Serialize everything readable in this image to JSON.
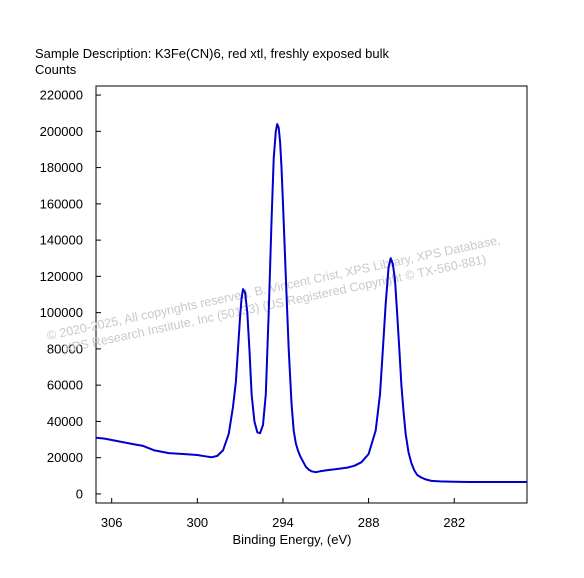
{
  "chart_data": {
    "type": "line",
    "title": "Sample Description:  K3Fe(CN)6, red xtl, freshly exposed bulk",
    "ylabel": "Counts",
    "xlabel": "Binding Energy, (eV)",
    "x_reversed": true,
    "xlim": [
      307.1,
      276.9
    ],
    "ylim": [
      -5000,
      225000
    ],
    "xticks": [
      306,
      300,
      294,
      288,
      282
    ],
    "yticks": [
      0,
      20000,
      40000,
      60000,
      80000,
      100000,
      120000,
      140000,
      160000,
      180000,
      200000,
      220000
    ],
    "line_color": "#0000cc",
    "grid": false,
    "series": [
      {
        "x": [
          307.1,
          306.5,
          305.5,
          304.5,
          303.8,
          303.0,
          302.0,
          301.0,
          300.0,
          299.5,
          299.0,
          298.6,
          298.2,
          297.8,
          297.5,
          297.3,
          297.15,
          297.0,
          296.9,
          296.8,
          296.65,
          296.5,
          296.35,
          296.2,
          296.0,
          295.8,
          295.6,
          295.4,
          295.2,
          295.0,
          294.8,
          294.65,
          294.5,
          294.4,
          294.3,
          294.2,
          294.1,
          294.0,
          293.8,
          293.6,
          293.4,
          293.25,
          293.1,
          292.95,
          292.8,
          292.6,
          292.4,
          292.2,
          292.0,
          291.7,
          291.4,
          291.0,
          290.5,
          290.0,
          289.5,
          289.0,
          288.5,
          288.0,
          287.5,
          287.2,
          287.0,
          286.8,
          286.6,
          286.45,
          286.3,
          286.15,
          286.0,
          285.85,
          285.7,
          285.55,
          285.4,
          285.2,
          285.0,
          284.8,
          284.6,
          284.3,
          284.0,
          283.6,
          283.0,
          282.0,
          281.0,
          280.0,
          279.0,
          278.0,
          276.9
        ],
        "y": [
          31000,
          30500,
          29000,
          27500,
          26500,
          24000,
          22500,
          22000,
          21500,
          20800,
          20200,
          21000,
          24000,
          33000,
          48000,
          62000,
          80000,
          98000,
          108000,
          113000,
          111000,
          100000,
          80000,
          55000,
          40000,
          34000,
          33500,
          38000,
          55000,
          100000,
          150000,
          185000,
          200000,
          204000,
          202000,
          194000,
          180000,
          160000,
          120000,
          80000,
          50000,
          35000,
          28000,
          24000,
          21000,
          18000,
          15000,
          13500,
          12500,
          12000,
          12500,
          13000,
          13500,
          14000,
          14500,
          15500,
          17500,
          22000,
          35000,
          55000,
          80000,
          105000,
          125000,
          130000,
          127000,
          118000,
          100000,
          80000,
          60000,
          45000,
          33000,
          23000,
          17000,
          13000,
          10500,
          9000,
          8000,
          7200,
          6900,
          6700,
          6600,
          6600,
          6600,
          6600,
          6600
        ]
      }
    ]
  },
  "watermark": {
    "line1": "©  2020-2025,  All copyrights reserved.   B. Vincent Crist,  XPS Library, XPS Database,",
    "line2": "XPS Research Institute, Inc (50133)  (US Registered Copyright © TX-560-881)"
  }
}
